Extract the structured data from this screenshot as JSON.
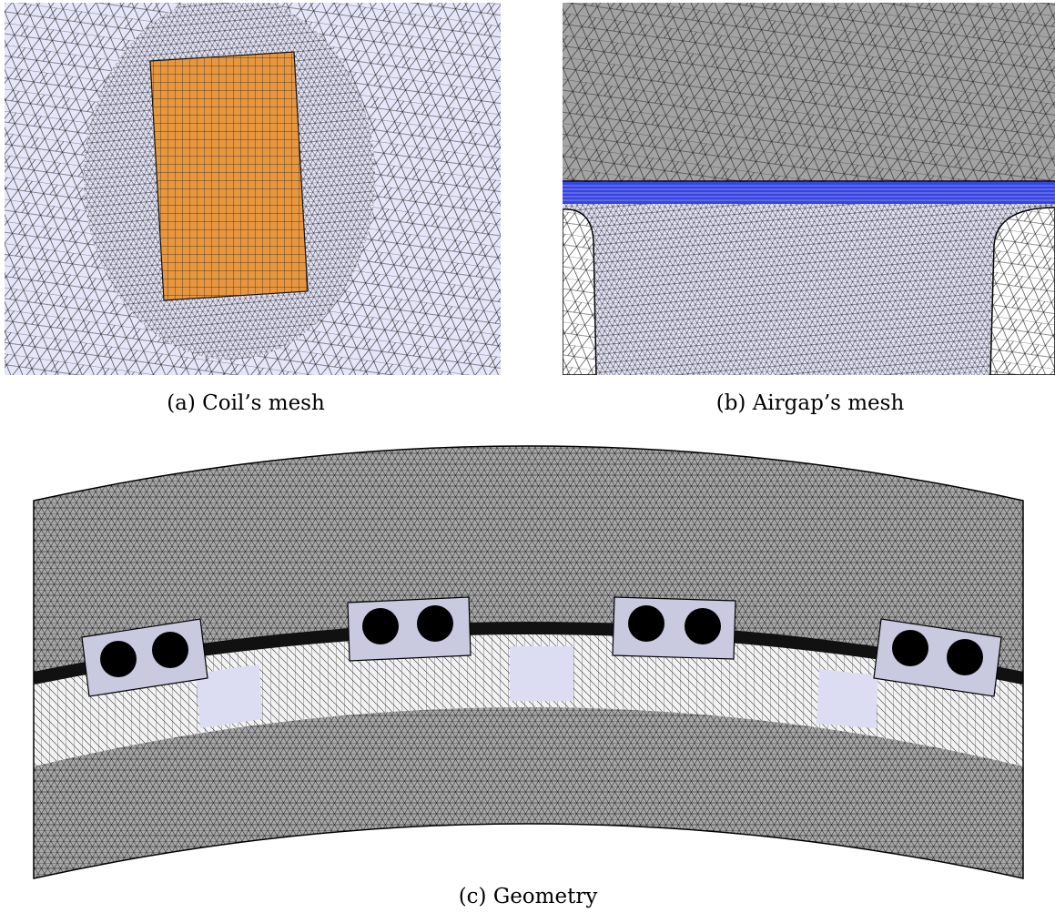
{
  "figure": {
    "panels": [
      {
        "caption": "(a) Coil’s mesh"
      },
      {
        "caption": "(b) Airgap’s mesh"
      },
      {
        "caption": "(c) Geometry"
      }
    ]
  }
}
